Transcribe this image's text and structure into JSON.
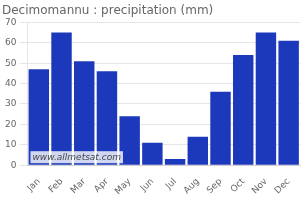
{
  "chart_data": {
    "type": "bar",
    "title": "Decimomannu : precipitation (mm)",
    "categories": [
      "Jan",
      "Feb",
      "Mar",
      "Apr",
      "May",
      "Jun",
      "Jul",
      "Aug",
      "Sep",
      "Oct",
      "Nov",
      "Dec"
    ],
    "values": [
      47,
      65,
      51,
      46,
      24,
      11,
      3,
      14,
      36,
      54,
      65,
      61
    ],
    "color": "#1c39bb",
    "ylim": [
      0,
      70
    ],
    "yticks": [
      0,
      10,
      20,
      30,
      40,
      50,
      60,
      70
    ],
    "grid": true,
    "annotations": [
      "www.allmetsat.com"
    ]
  }
}
